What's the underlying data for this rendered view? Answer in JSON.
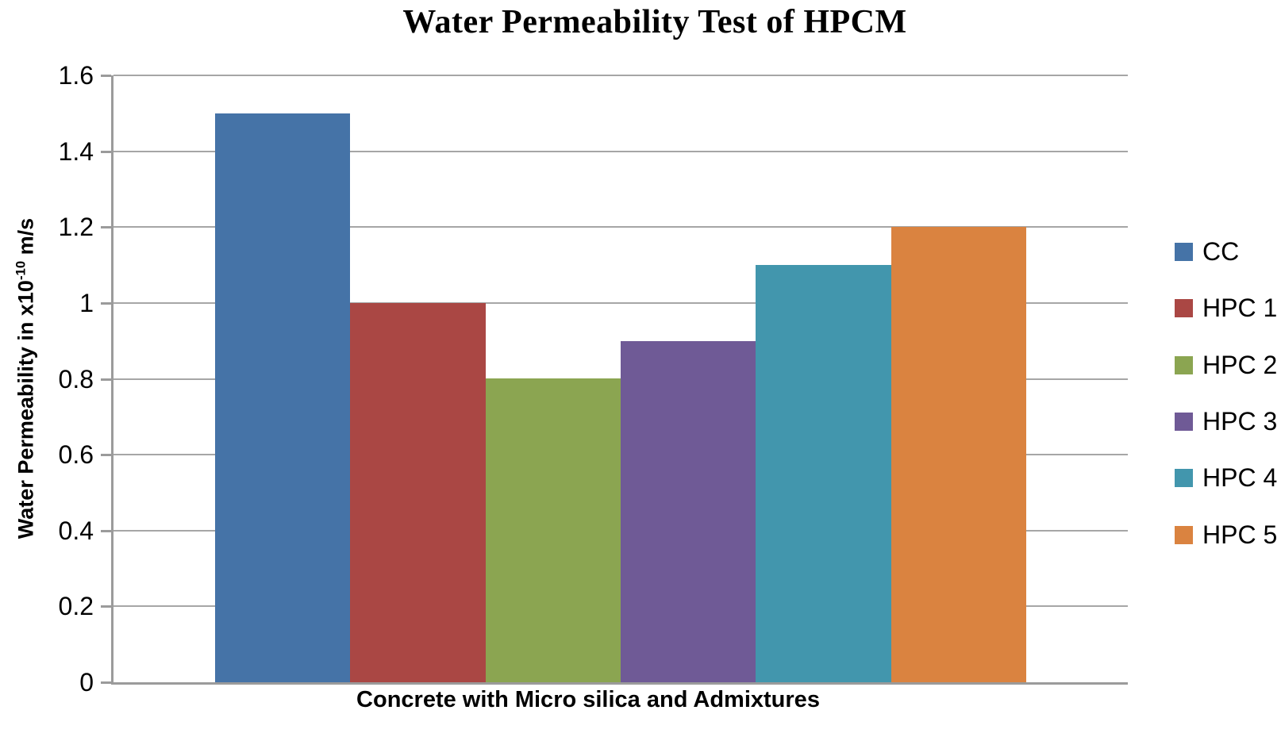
{
  "chart_data": {
    "type": "bar",
    "title": "Water Permeability Test of HPCM",
    "xlabel": "Concrete with Micro silica and Admixtures",
    "ylabel": "Water Permeability in x10^-10 m/s",
    "ylabel_parts": {
      "base": "Water Permeability in x10",
      "sup": "-10",
      "unit": " m/s"
    },
    "categories": [
      "Concrete with Micro silica and Admixtures"
    ],
    "series": [
      {
        "name": "CC",
        "color": "#4573A7",
        "values": [
          1.5
        ]
      },
      {
        "name": "HPC 1",
        "color": "#AA4744",
        "values": [
          1.0
        ]
      },
      {
        "name": "HPC 2",
        "color": "#8BA551",
        "values": [
          0.8
        ]
      },
      {
        "name": "HPC 3",
        "color": "#6F5A96",
        "values": [
          0.9
        ]
      },
      {
        "name": "HPC 4",
        "color": "#4296AD",
        "values": [
          1.1
        ]
      },
      {
        "name": "HPC 5",
        "color": "#DA8340",
        "values": [
          1.2
        ]
      }
    ],
    "ylim": [
      0,
      1.6
    ],
    "ytick_step": 0.2,
    "yticks": [
      "0",
      "0.2",
      "0.4",
      "0.6",
      "0.8",
      "1",
      "1.2",
      "1.4",
      "1.6"
    ],
    "grid": true,
    "legend_position": "right"
  },
  "colors": {
    "gridline": "#A6A6A6",
    "axis": "#9B9B9B",
    "text": "#000000",
    "background": "#FFFFFF"
  }
}
